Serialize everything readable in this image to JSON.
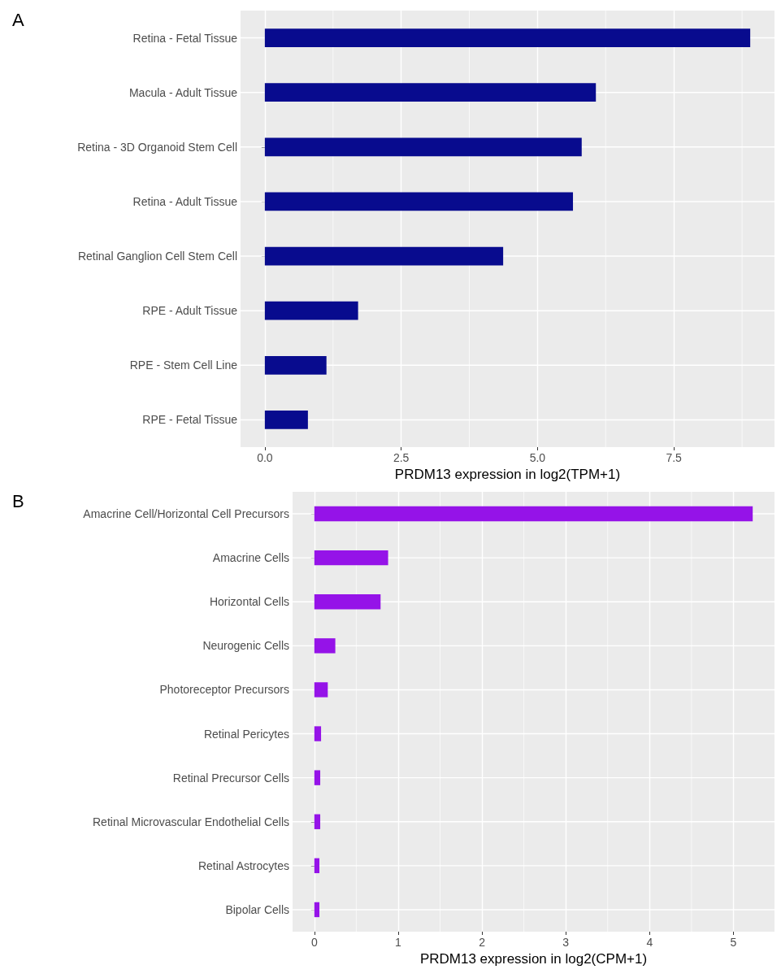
{
  "chart_data": [
    {
      "type": "bar",
      "orientation": "horizontal",
      "title": "A",
      "xlabel": "PRDM13 expression in log2(TPM+1)",
      "categories": [
        "Retina - Fetal Tissue",
        "Macula - Adult Tissue",
        "Retina - 3D Organoid Stem Cell",
        "Retina - Adult Tissue",
        "Retinal Ganglion Cell Stem Cell",
        "RPE - Adult Tissue",
        "RPE - Stem Cell Line",
        "RPE - Fetal Tissue"
      ],
      "values": [
        8.9,
        6.07,
        5.81,
        5.65,
        4.37,
        1.71,
        1.13,
        0.79
      ],
      "color": "#080b8e",
      "xlim": [
        -0.445,
        9.345
      ],
      "xticks": [
        {
          "value": 0,
          "label": "0.0"
        },
        {
          "value": 2.5,
          "label": "2.5"
        },
        {
          "value": 5,
          "label": "5.0"
        },
        {
          "value": 7.5,
          "label": "7.5"
        }
      ],
      "grid": true
    },
    {
      "type": "bar",
      "orientation": "horizontal",
      "title": "B",
      "xlabel": "PRDM13 expression in log2(CPM+1)",
      "categories": [
        "Amacrine Cell/Horizontal Cell Precursors",
        "Amacrine Cells",
        "Horizontal Cells",
        "Neurogenic Cells",
        "Photoreceptor Precursors",
        "Retinal Pericytes",
        "Retinal Precursor Cells",
        "Retinal Microvascular Endothelial Cells",
        "Retinal Astrocytes",
        "Bipolar Cells"
      ],
      "values": [
        5.23,
        0.88,
        0.79,
        0.25,
        0.16,
        0.08,
        0.07,
        0.07,
        0.06,
        0.06
      ],
      "color": "#9513e8",
      "xlim": [
        -0.26,
        5.49
      ],
      "xticks": [
        0,
        1,
        2,
        3,
        4,
        5
      ],
      "grid": true
    }
  ]
}
